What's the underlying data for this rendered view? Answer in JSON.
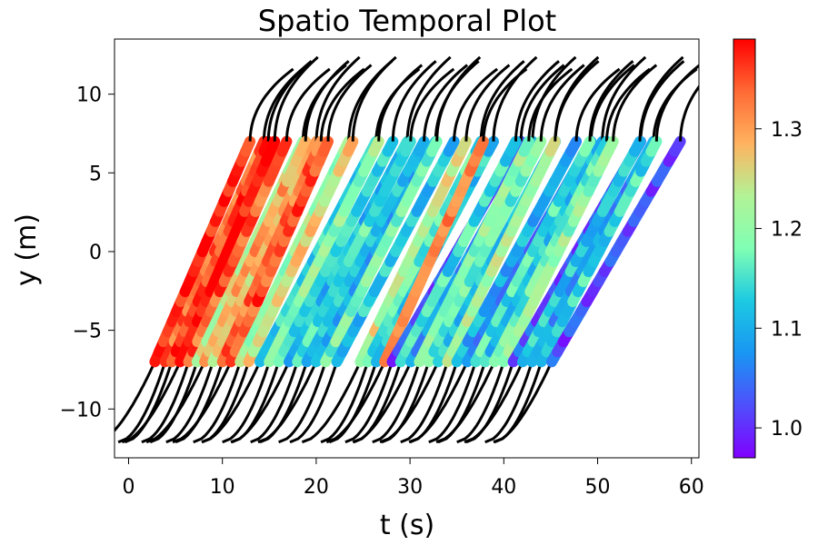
{
  "chart_data": {
    "type": "scatter",
    "title": "Spatio Temporal Plot",
    "xlabel": "t (s)",
    "ylabel": "y (m)",
    "xlim": [
      -1.5,
      60.8
    ],
    "ylim": [
      -13.1,
      13.5
    ],
    "xticks": [
      "0",
      "10",
      "20",
      "30",
      "40",
      "50",
      "60"
    ],
    "yticks": [
      "−10",
      "−5",
      "0",
      "5",
      "10"
    ],
    "grid": false,
    "colorbar": {
      "colormap": "rainbow",
      "range": [
        0.97,
        1.39
      ],
      "ticks": [
        "1.0",
        "1.1",
        "1.2",
        "1.3"
      ]
    },
    "measured_region": {
      "y_range": [
        -7,
        7
      ],
      "color_quantity": "speed"
    },
    "unmeasured_trace_color": "#000000",
    "trajectories": [
      {
        "t_in": 2.8,
        "v": 1.38
      },
      {
        "t_in": 3.9,
        "v": 1.33
      },
      {
        "t_in": 4.6,
        "v": 1.36
      },
      {
        "t_in": 5.5,
        "v": 1.39
      },
      {
        "t_in": 6.4,
        "v": 1.34
      },
      {
        "t_in": 7.3,
        "v": 1.24
      },
      {
        "t_in": 8.1,
        "v": 1.3
      },
      {
        "t_in": 9.0,
        "v": 1.27
      },
      {
        "t_in": 10.0,
        "v": 1.33
      },
      {
        "t_in": 10.9,
        "v": 1.35
      },
      {
        "t_in": 11.9,
        "v": 1.21
      },
      {
        "t_in": 12.8,
        "v": 1.26
      },
      {
        "t_in": 14.0,
        "v": 1.13
      },
      {
        "t_in": 15.0,
        "v": 1.2
      },
      {
        "t_in": 16.0,
        "v": 1.15
      },
      {
        "t_in": 17.1,
        "v": 1.11
      },
      {
        "t_in": 18.0,
        "v": 1.16
      },
      {
        "t_in": 19.0,
        "v": 1.12
      },
      {
        "t_in": 20.0,
        "v": 1.1
      },
      {
        "t_in": 21.0,
        "v": 1.18
      },
      {
        "t_in": 22.2,
        "v": 1.12
      },
      {
        "t_in": 24.7,
        "v": 1.24
      },
      {
        "t_in": 25.5,
        "v": 1.16
      },
      {
        "t_in": 26.4,
        "v": 1.12
      },
      {
        "t_in": 27.3,
        "v": 1.33
      },
      {
        "t_in": 28.1,
        "v": 1.02
      },
      {
        "t_in": 29.0,
        "v": 1.14
      },
      {
        "t_in": 30.1,
        "v": 1.08
      },
      {
        "t_in": 31.0,
        "v": 1.2
      },
      {
        "t_in": 32.0,
        "v": 1.17
      },
      {
        "t_in": 33.0,
        "v": 1.12
      },
      {
        "t_in": 34.0,
        "v": 1.22
      },
      {
        "t_in": 35.0,
        "v": 1.1
      },
      {
        "t_in": 36.1,
        "v": 1.06
      },
      {
        "t_in": 37.0,
        "v": 1.15
      },
      {
        "t_in": 38.0,
        "v": 1.12
      },
      {
        "t_in": 39.0,
        "v": 1.17
      },
      {
        "t_in": 40.0,
        "v": 1.2
      },
      {
        "t_in": 41.0,
        "v": 1.03
      },
      {
        "t_in": 42.0,
        "v": 1.12
      },
      {
        "t_in": 43.0,
        "v": 1.08
      },
      {
        "t_in": 44.0,
        "v": 1.14
      },
      {
        "t_in": 45.1,
        "v": 1.02
      }
    ]
  }
}
